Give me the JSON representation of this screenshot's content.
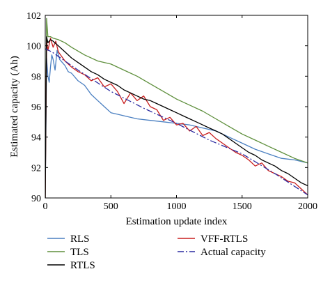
{
  "chart_data": {
    "type": "line",
    "xlabel": "Estimation update index",
    "ylabel": "Estimated capacity (Ah)",
    "xlim": [
      0,
      2000
    ],
    "ylim": [
      90,
      102
    ],
    "xticks": [
      {
        "value": 0,
        "label": "0"
      },
      {
        "value": 500,
        "label": "500"
      },
      {
        "value": 1000,
        "label": "1000"
      },
      {
        "value": 1500,
        "label": "1500"
      },
      {
        "value": 2000,
        "label": "2000"
      }
    ],
    "yticks": [
      {
        "value": 90,
        "label": "90"
      },
      {
        "value": 92,
        "label": "92"
      },
      {
        "value": 94,
        "label": "94"
      },
      {
        "value": 96,
        "label": "96"
      },
      {
        "value": 98,
        "label": "98"
      },
      {
        "value": 100,
        "label": "100"
      },
      {
        "value": 102,
        "label": "102"
      }
    ],
    "grid": false,
    "legend_position": "below",
    "series": [
      {
        "name": "RLS",
        "color": "#4a7fc1",
        "dash": "solid",
        "x": [
          0,
          10,
          20,
          30,
          40,
          50,
          60,
          75,
          90,
          110,
          130,
          150,
          175,
          200,
          250,
          300,
          350,
          400,
          450,
          500,
          550,
          600,
          700,
          800,
          900,
          1000,
          1100,
          1200,
          1300,
          1400,
          1500,
          1600,
          1700,
          1800,
          1900,
          2000
        ],
        "y": [
          90.0,
          99.2,
          98.0,
          97.6,
          98.6,
          99.4,
          99.1,
          98.4,
          99.7,
          99.1,
          98.9,
          98.7,
          98.3,
          98.2,
          97.7,
          97.4,
          96.8,
          96.4,
          96.0,
          95.6,
          95.5,
          95.4,
          95.2,
          95.1,
          95.0,
          94.9,
          94.8,
          94.6,
          94.4,
          94.0,
          93.6,
          93.2,
          92.9,
          92.6,
          92.5,
          92.3
        ]
      },
      {
        "name": "TLS",
        "color": "#5e8f3c",
        "dash": "solid",
        "x": [
          0,
          10,
          20,
          40,
          60,
          100,
          150,
          200,
          300,
          400,
          500,
          600,
          700,
          800,
          900,
          1000,
          1100,
          1200,
          1300,
          1400,
          1500,
          1600,
          1700,
          1800,
          1900,
          2000
        ],
        "y": [
          90.0,
          101.8,
          100.6,
          100.6,
          100.5,
          100.4,
          100.2,
          99.9,
          99.4,
          99.0,
          98.8,
          98.4,
          98.0,
          97.5,
          97.0,
          96.5,
          96.1,
          95.7,
          95.2,
          94.7,
          94.2,
          93.8,
          93.4,
          93.0,
          92.6,
          92.3
        ]
      },
      {
        "name": "VFF-RTLS",
        "color": "#c81e1e",
        "dash": "solid",
        "x": [
          0,
          10,
          20,
          40,
          60,
          80,
          100,
          150,
          200,
          250,
          300,
          350,
          400,
          450,
          500,
          550,
          600,
          650,
          700,
          750,
          800,
          850,
          900,
          950,
          1000,
          1050,
          1100,
          1150,
          1200,
          1250,
          1300,
          1350,
          1400,
          1450,
          1500,
          1550,
          1600,
          1650,
          1700,
          1750,
          1800,
          1850,
          1900,
          1950,
          2000
        ],
        "y": [
          90.0,
          100.3,
          99.7,
          100.5,
          99.9,
          100.3,
          99.6,
          99.0,
          98.6,
          98.3,
          98.1,
          97.7,
          97.9,
          97.3,
          97.5,
          97.0,
          96.2,
          96.9,
          96.4,
          96.7,
          96.0,
          95.8,
          95.1,
          95.3,
          94.8,
          94.9,
          94.4,
          94.7,
          94.1,
          94.3,
          93.9,
          93.6,
          93.3,
          93.0,
          92.8,
          92.5,
          92.1,
          92.3,
          91.8,
          91.6,
          91.4,
          91.1,
          91.0,
          90.6,
          90.2
        ]
      },
      {
        "name": "RTLS",
        "color": "#000000",
        "dash": "solid",
        "x": [
          0,
          10,
          20,
          40,
          60,
          100,
          150,
          200,
          250,
          300,
          350,
          400,
          450,
          500,
          550,
          600,
          650,
          700,
          750,
          800,
          850,
          900,
          950,
          1000,
          1050,
          1100,
          1150,
          1200,
          1250,
          1300,
          1350,
          1400,
          1450,
          1500,
          1550,
          1600,
          1650,
          1700,
          1750,
          1800,
          1850,
          1900,
          1950,
          2000
        ],
        "y": [
          90.0,
          100.6,
          100.2,
          100.4,
          100.3,
          100.0,
          99.6,
          99.2,
          98.9,
          98.6,
          98.3,
          98.1,
          97.8,
          97.6,
          97.4,
          97.1,
          96.9,
          96.7,
          96.5,
          96.4,
          96.2,
          96.0,
          95.8,
          95.6,
          95.4,
          95.2,
          95.0,
          94.8,
          94.6,
          94.4,
          94.2,
          93.9,
          93.6,
          93.3,
          93.0,
          92.8,
          92.5,
          92.3,
          92.1,
          91.8,
          91.6,
          91.3,
          91.0,
          90.8
        ]
      },
      {
        "name": "Actual capacity",
        "color": "#2a2aa0",
        "dash": "dashdot",
        "x": [
          0,
          50,
          250,
          500,
          750,
          1000,
          1250,
          1500,
          1750,
          2000
        ],
        "y": [
          99.8,
          99.6,
          98.4,
          97.0,
          95.9,
          94.9,
          93.8,
          92.9,
          91.6,
          90.2
        ]
      }
    ]
  }
}
